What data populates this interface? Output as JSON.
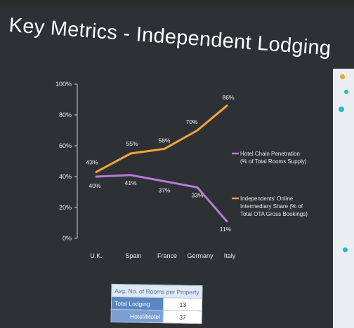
{
  "slide": {
    "title": "Key Metrics - Independent Lodging"
  },
  "colors": {
    "background": "#2e3134",
    "orange": "#f5a23a",
    "purple": "#b77ad9",
    "table_header": "#dfe8f3",
    "table_label": "#5a86c2"
  },
  "chart_data": {
    "type": "line",
    "categories": [
      "U.K.",
      "Spain",
      "France",
      "Germany",
      "Italy"
    ],
    "ylim": [
      0,
      100
    ],
    "yticks": [
      "0%",
      "20%",
      "40%",
      "60%",
      "80%",
      "100%"
    ],
    "grid": false,
    "legend_position": "right",
    "series": [
      {
        "name": "Hotel Chain Penetration (% of Total Rooms Supply)",
        "color": "#b77ad9",
        "values": [
          40,
          41,
          37,
          33,
          11
        ],
        "labels": [
          "40%",
          "41%",
          "37%",
          "33%",
          "11%"
        ]
      },
      {
        "name": "Independents' Online Intermediary Share (% of Total OTA Gross Bookings)",
        "color": "#f5a23a",
        "values": [
          43,
          55,
          58,
          70,
          86
        ],
        "labels": [
          "43%",
          "55%",
          "58%",
          "70%",
          "86%"
        ]
      }
    ],
    "legend": [
      {
        "line1": "Hotel Chain Penetration",
        "line2": "(% of Total Rooms Supply)"
      },
      {
        "line1": "Independents' Online",
        "line2": "Intermediary Share (% of",
        "line3": "Total OTA Gross Bookings)"
      }
    ]
  },
  "table": {
    "header": "Avg. No. of Rooms per Property",
    "rows": [
      {
        "label": "Total Lodging",
        "value": "13"
      },
      {
        "label": "Hotel/Motel",
        "value": "37"
      }
    ]
  }
}
